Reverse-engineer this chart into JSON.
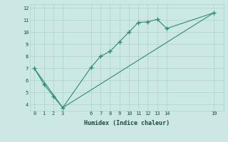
{
  "line1_x": [
    0,
    1,
    2,
    3,
    6,
    7,
    8,
    9,
    10,
    11,
    12,
    13,
    14,
    19
  ],
  "line1_y": [
    7.0,
    5.7,
    4.7,
    3.75,
    7.1,
    8.0,
    8.4,
    9.2,
    10.0,
    10.8,
    10.85,
    11.05,
    10.3,
    11.6
  ],
  "line2_x": [
    0,
    3,
    19
  ],
  "line2_y": [
    7.0,
    3.75,
    11.6
  ],
  "line_color": "#2e8b7a",
  "marker": "+",
  "markersize": 4,
  "xlabel": "Humidex (Indice chaleur)",
  "xlim": [
    -0.5,
    20
  ],
  "ylim": [
    3.5,
    12.3
  ],
  "yticks": [
    4,
    5,
    6,
    7,
    8,
    9,
    10,
    11,
    12
  ],
  "xticks": [
    0,
    1,
    2,
    3,
    6,
    7,
    8,
    9,
    10,
    11,
    12,
    13,
    14,
    19
  ],
  "bg_color": "#cce8e4",
  "grid_color": "#b0d0cc",
  "font_color": "#1a4a45"
}
